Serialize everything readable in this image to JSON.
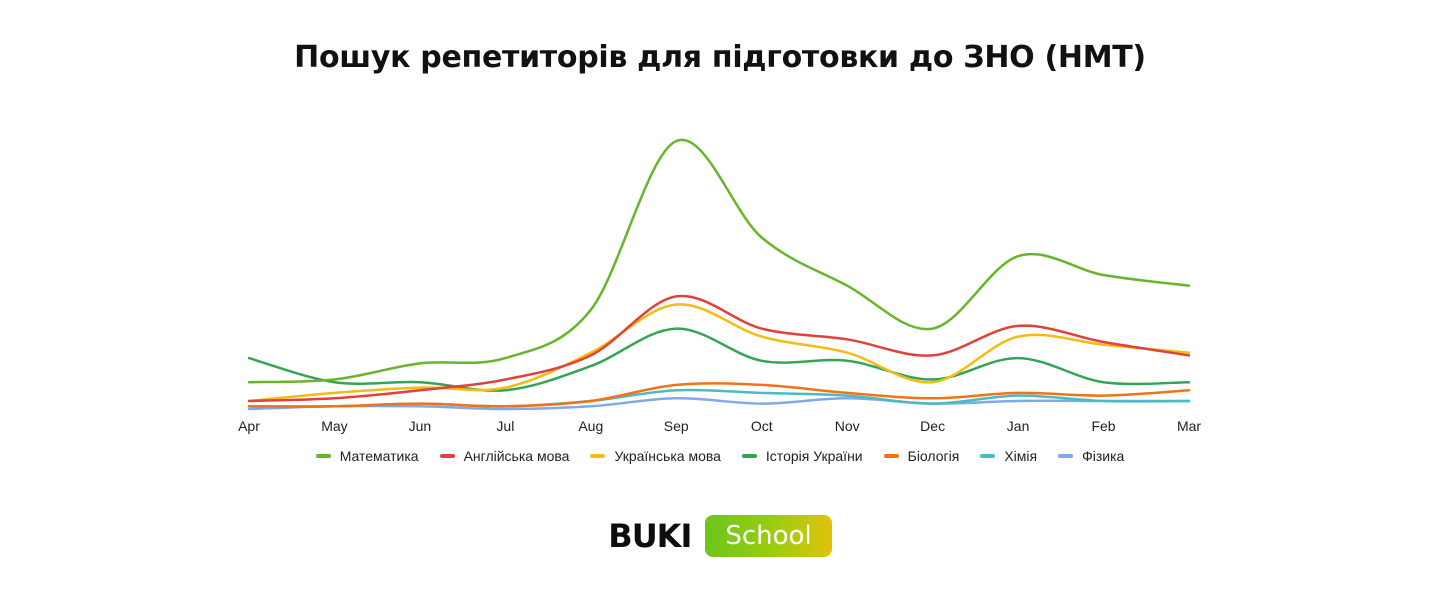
{
  "chart_data": {
    "type": "line",
    "title": "Пошук репетиторів для підготовки до ЗНО (НМТ)",
    "xlabel": "",
    "ylabel": "",
    "categories": [
      "Apr",
      "May",
      "Jun",
      "Jul",
      "Aug",
      "Sep",
      "Oct",
      "Nov",
      "Dec",
      "Jan",
      "Feb",
      "Mar"
    ],
    "ylim": [
      0,
      100
    ],
    "grid": false,
    "legend": "bottom",
    "series": [
      {
        "name": "Математика",
        "color": "#6ab42b",
        "values": [
          10,
          11,
          17,
          19,
          37,
          100,
          64,
          46,
          30,
          57,
          50,
          46
        ]
      },
      {
        "name": "Англійська мова",
        "color": "#e0423a",
        "values": [
          3,
          4,
          7,
          11,
          20,
          42,
          30,
          26,
          20,
          31,
          25,
          20
        ]
      },
      {
        "name": "Українська мова",
        "color": "#f2bc14",
        "values": [
          3,
          6,
          8,
          8,
          21,
          39,
          27,
          21,
          10,
          27,
          24,
          21
        ]
      },
      {
        "name": "Історія України",
        "color": "#36a456",
        "values": [
          19,
          10,
          10,
          7,
          16,
          30,
          18,
          18,
          11,
          19,
          10,
          10
        ]
      },
      {
        "name": "Біологія",
        "color": "#f27317",
        "values": [
          1,
          1,
          2,
          1,
          3,
          9,
          9,
          6,
          4,
          6,
          5,
          7
        ]
      },
      {
        "name": "Хімія",
        "color": "#48bcc0",
        "values": [
          1,
          1,
          2,
          1,
          3,
          7,
          6,
          5,
          2,
          5,
          3,
          3
        ]
      },
      {
        "name": "Фізика",
        "color": "#7fa9ea",
        "values": [
          0,
          1,
          1,
          0,
          1,
          4,
          2,
          4,
          2,
          3,
          3,
          3
        ]
      }
    ]
  },
  "brand": {
    "name": "BUKI",
    "badge": "School"
  }
}
